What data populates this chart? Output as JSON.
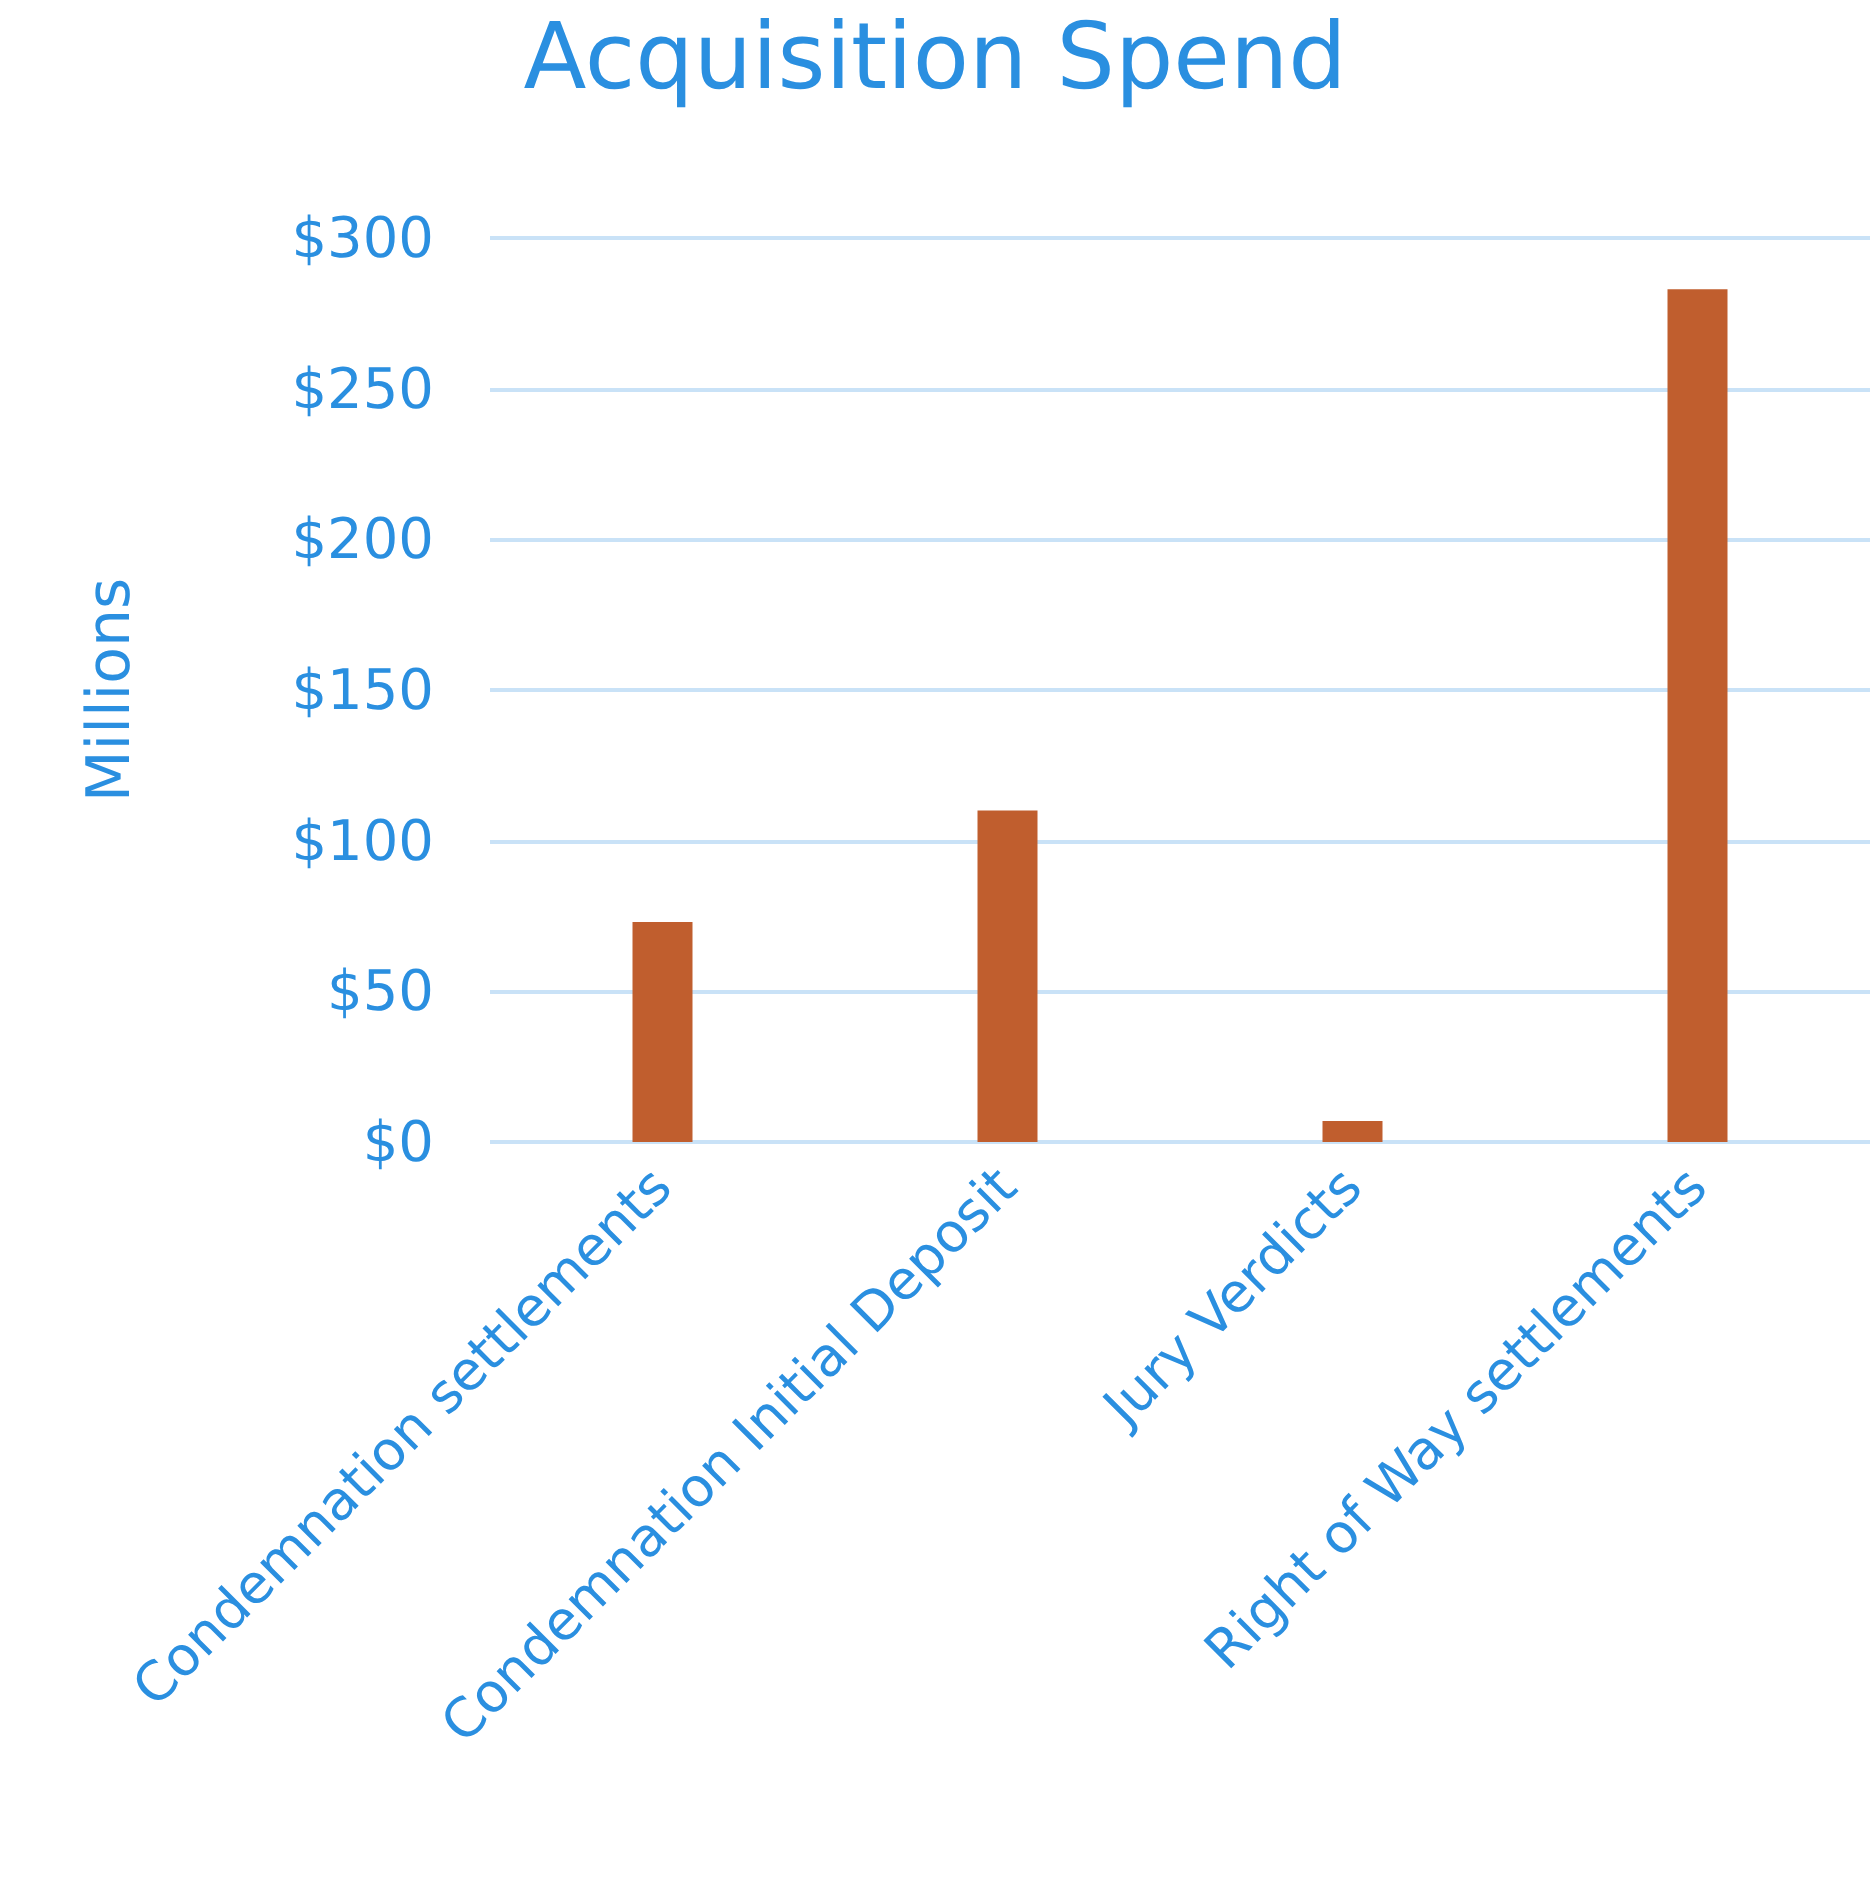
{
  "chart_data": {
    "type": "bar",
    "title": "Acquisition Spend",
    "ylabel": "Millions",
    "categories": [
      "Condemnation settlements",
      "Condemnation Initial Deposit",
      "Jury Verdicts",
      "Right of Way settlements"
    ],
    "values": [
      73,
      110,
      7,
      283
    ],
    "color": "#c05e2e",
    "ylim": [
      0,
      300
    ],
    "yticks": [
      {
        "value": 0,
        "label": "$0"
      },
      {
        "value": 50,
        "label": "$50"
      },
      {
        "value": 100,
        "label": "$100"
      },
      {
        "value": 150,
        "label": "$150"
      },
      {
        "value": 200,
        "label": "$200"
      },
      {
        "value": 250,
        "label": "$250"
      },
      {
        "value": 300,
        "label": "$300"
      }
    ],
    "grid": "y"
  }
}
